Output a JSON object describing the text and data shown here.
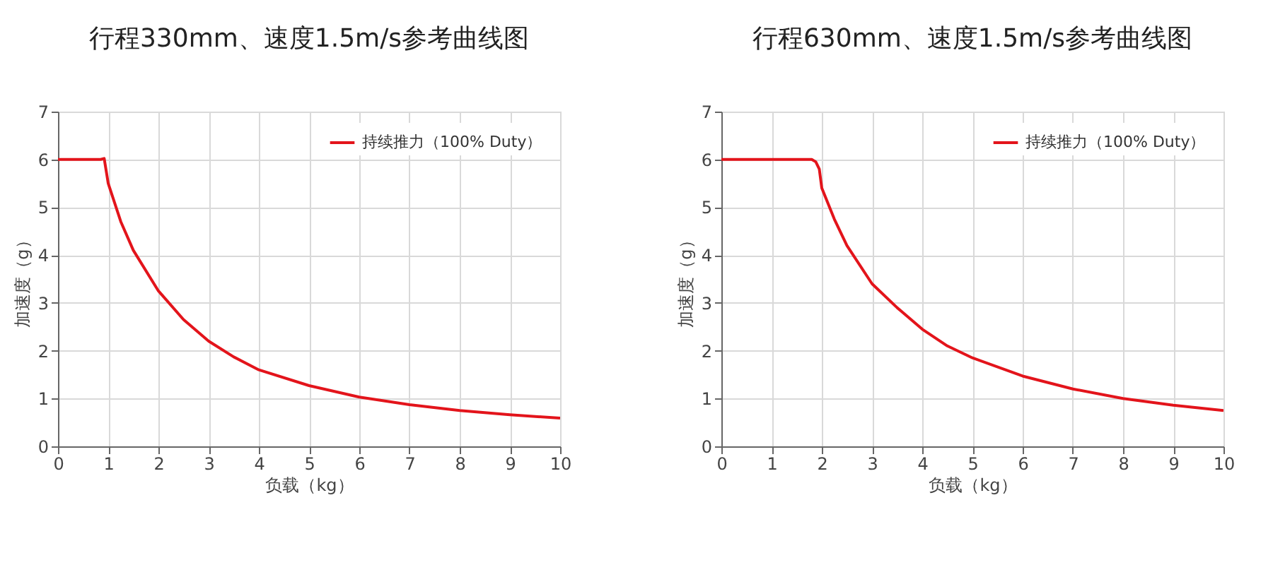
{
  "chart_data": [
    {
      "type": "line",
      "title": "行程330mm、速度1.5m/s参考曲线图",
      "xlabel": "负载（kg）",
      "ylabel": "加速度（g）",
      "x": [
        0,
        0.85,
        0.92,
        1.0,
        1.25,
        1.5,
        2,
        2.5,
        3,
        3.5,
        4,
        5,
        6,
        7,
        8,
        9,
        10
      ],
      "series": [
        {
          "name": "持续推力（100% Duty）",
          "color": "#e3141b",
          "values": [
            6,
            6,
            6.02,
            5.5,
            4.7,
            4.1,
            3.25,
            2.65,
            2.2,
            1.87,
            1.6,
            1.27,
            1.03,
            0.87,
            0.75,
            0.66,
            0.59
          ]
        }
      ],
      "xlim": [
        0,
        10
      ],
      "xticks": [
        0,
        1,
        2,
        3,
        4,
        5,
        6,
        7,
        8,
        9,
        10
      ],
      "ylim": [
        0,
        7
      ],
      "yticks": [
        0,
        1,
        2,
        3,
        4,
        5,
        6,
        7
      ],
      "grid": true,
      "legend": "top right"
    },
    {
      "type": "line",
      "title": "行程630mm、速度1.5m/s参考曲线图",
      "xlabel": "负载（kg）",
      "ylabel": "加速度（g）",
      "x": [
        0,
        1.8,
        1.88,
        1.95,
        2.0,
        2.25,
        2.5,
        3,
        3.5,
        4,
        4.5,
        5,
        6,
        7,
        8,
        9,
        10
      ],
      "series": [
        {
          "name": "持续推力（100% Duty）",
          "color": "#e3141b",
          "values": [
            6,
            6,
            5.95,
            5.8,
            5.4,
            4.75,
            4.2,
            3.4,
            2.9,
            2.45,
            2.1,
            1.85,
            1.47,
            1.2,
            1.0,
            0.86,
            0.75
          ]
        }
      ],
      "xlim": [
        0,
        10
      ],
      "xticks": [
        0,
        1,
        2,
        3,
        4,
        5,
        6,
        7,
        8,
        9,
        10
      ],
      "ylim": [
        0,
        7
      ],
      "yticks": [
        0,
        1,
        2,
        3,
        4,
        5,
        6,
        7
      ],
      "grid": true,
      "legend": "top right"
    }
  ]
}
